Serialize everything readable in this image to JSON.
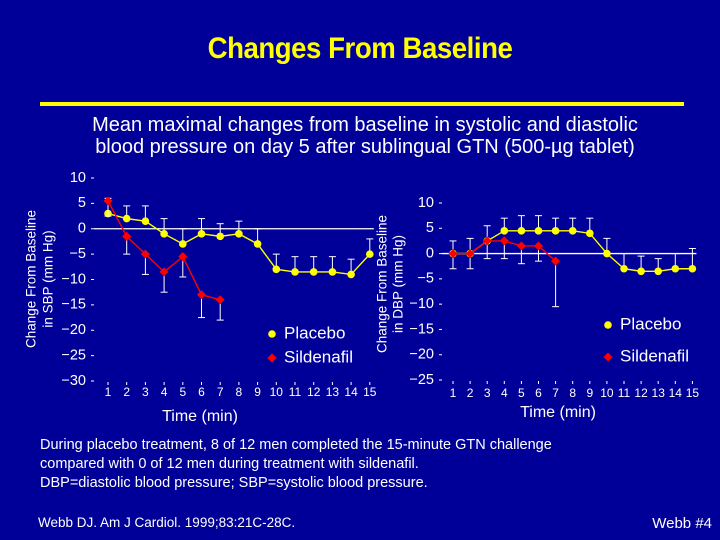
{
  "slide": {
    "title": "Changes From Baseline",
    "subtitle_line1": "Mean maximal changes from baseline in systolic and diastolic",
    "subtitle_line2": "blood pressure on day 5 after sublingual GTN (500-µg tablet)",
    "footnote_line1": "During placebo treatment, 8 of 12 men completed the 15-minute GTN challenge",
    "footnote_line2": "compared with 0 of 12 men during treatment with sildenafil.",
    "footnote_line3": "DBP=diastolic blood pressure; SBP=systolic blood pressure.",
    "citation": "Webb DJ. Am J Cardiol. 1999;83:21C-28C.",
    "slide_number": "Webb #4"
  },
  "colors": {
    "background": "#000099",
    "title": "#ffff00",
    "placebo": "#ffff00",
    "sildenafil": "#ff0000",
    "axis": "#ffffff",
    "error_bar": "#ffffff"
  },
  "chart_data": [
    {
      "type": "line",
      "id": "sbp",
      "ylabel_line1": "Change From Baseline",
      "ylabel_line2": "in SBP (mm Hg)",
      "xlabel": "Time (min)",
      "ylim": [
        -30,
        10
      ],
      "yticks": [
        10,
        5,
        0,
        -5,
        -10,
        -15,
        -20,
        -25,
        -30
      ],
      "ytick_labels": [
        "10",
        "5",
        "0",
        "−5",
        "−10",
        "−15",
        "−20",
        "−25",
        "−30"
      ],
      "xticks": [
        1,
        2,
        3,
        4,
        5,
        6,
        7,
        8,
        9,
        10,
        11,
        12,
        13,
        14,
        15
      ],
      "xtick_labels": [
        "1",
        "2",
        "3",
        "4",
        "5",
        "6",
        "7",
        "8",
        "9",
        "10",
        "11",
        "12",
        "13",
        "14",
        "15"
      ],
      "legend": [
        "Placebo",
        "Sildenafil"
      ],
      "legend_position": "bottom-right",
      "series": [
        {
          "name": "Placebo",
          "x": [
            1,
            2,
            3,
            4,
            5,
            6,
            7,
            8,
            9,
            10,
            11,
            12,
            13,
            14,
            15
          ],
          "values": [
            3,
            2,
            1.5,
            -1,
            -3,
            -1,
            -1.5,
            -1,
            -3,
            -8,
            -8.5,
            -8.5,
            -8.5,
            -9,
            -5
          ],
          "err": [
            3,
            2.5,
            3,
            3,
            3,
            3,
            2.5,
            2.5,
            3,
            3,
            3,
            3,
            3,
            3,
            3
          ]
        },
        {
          "name": "Sildenafil",
          "x": [
            1,
            2,
            3,
            4,
            5,
            6,
            7
          ],
          "values": [
            5.5,
            -1.5,
            -5,
            -8.5,
            -5.5,
            -13,
            -14
          ],
          "err": [
            3,
            3.5,
            4,
            4,
            4,
            4.5,
            4
          ]
        }
      ]
    },
    {
      "type": "line",
      "id": "dbp",
      "ylabel_line1": "Change From Baseline",
      "ylabel_line2": "in DBP (mm Hg)",
      "xlabel": "Time (min)",
      "ylim": [
        -25,
        10
      ],
      "yticks": [
        10,
        5,
        0,
        -5,
        -10,
        -15,
        -20,
        -25
      ],
      "ytick_labels": [
        "10",
        "5",
        "0",
        "−5",
        "−10",
        "−15",
        "−20",
        "−25"
      ],
      "xticks": [
        1,
        2,
        3,
        4,
        5,
        6,
        7,
        8,
        9,
        10,
        11,
        12,
        13,
        14,
        15
      ],
      "xtick_labels": [
        "1",
        "2",
        "3",
        "4",
        "5",
        "6",
        "7",
        "8",
        "9",
        "10",
        "11",
        "12",
        "13",
        "14",
        "15"
      ],
      "legend": [
        "Placebo",
        "Sildenafil"
      ],
      "legend_position": "bottom-right",
      "series": [
        {
          "name": "Placebo",
          "x": [
            1,
            2,
            3,
            4,
            5,
            6,
            7,
            8,
            9,
            10,
            11,
            12,
            13,
            14,
            15
          ],
          "values": [
            0,
            0,
            2.5,
            4.5,
            4.5,
            4.5,
            4.5,
            4.5,
            4,
            0,
            -3,
            -3.5,
            -3.5,
            -3,
            -3
          ],
          "err": [
            2.5,
            3,
            3,
            2.5,
            3,
            3,
            2.5,
            2.5,
            3,
            3,
            3,
            3,
            2.5,
            3,
            4
          ]
        },
        {
          "name": "Sildenafil",
          "x": [
            1,
            2,
            3,
            4,
            5,
            6,
            7
          ],
          "values": [
            0,
            0,
            2.5,
            2.5,
            1.5,
            1.5,
            -1.5
          ],
          "err": [
            3,
            3,
            3.5,
            3.5,
            3.5,
            3,
            9
          ]
        }
      ]
    }
  ]
}
